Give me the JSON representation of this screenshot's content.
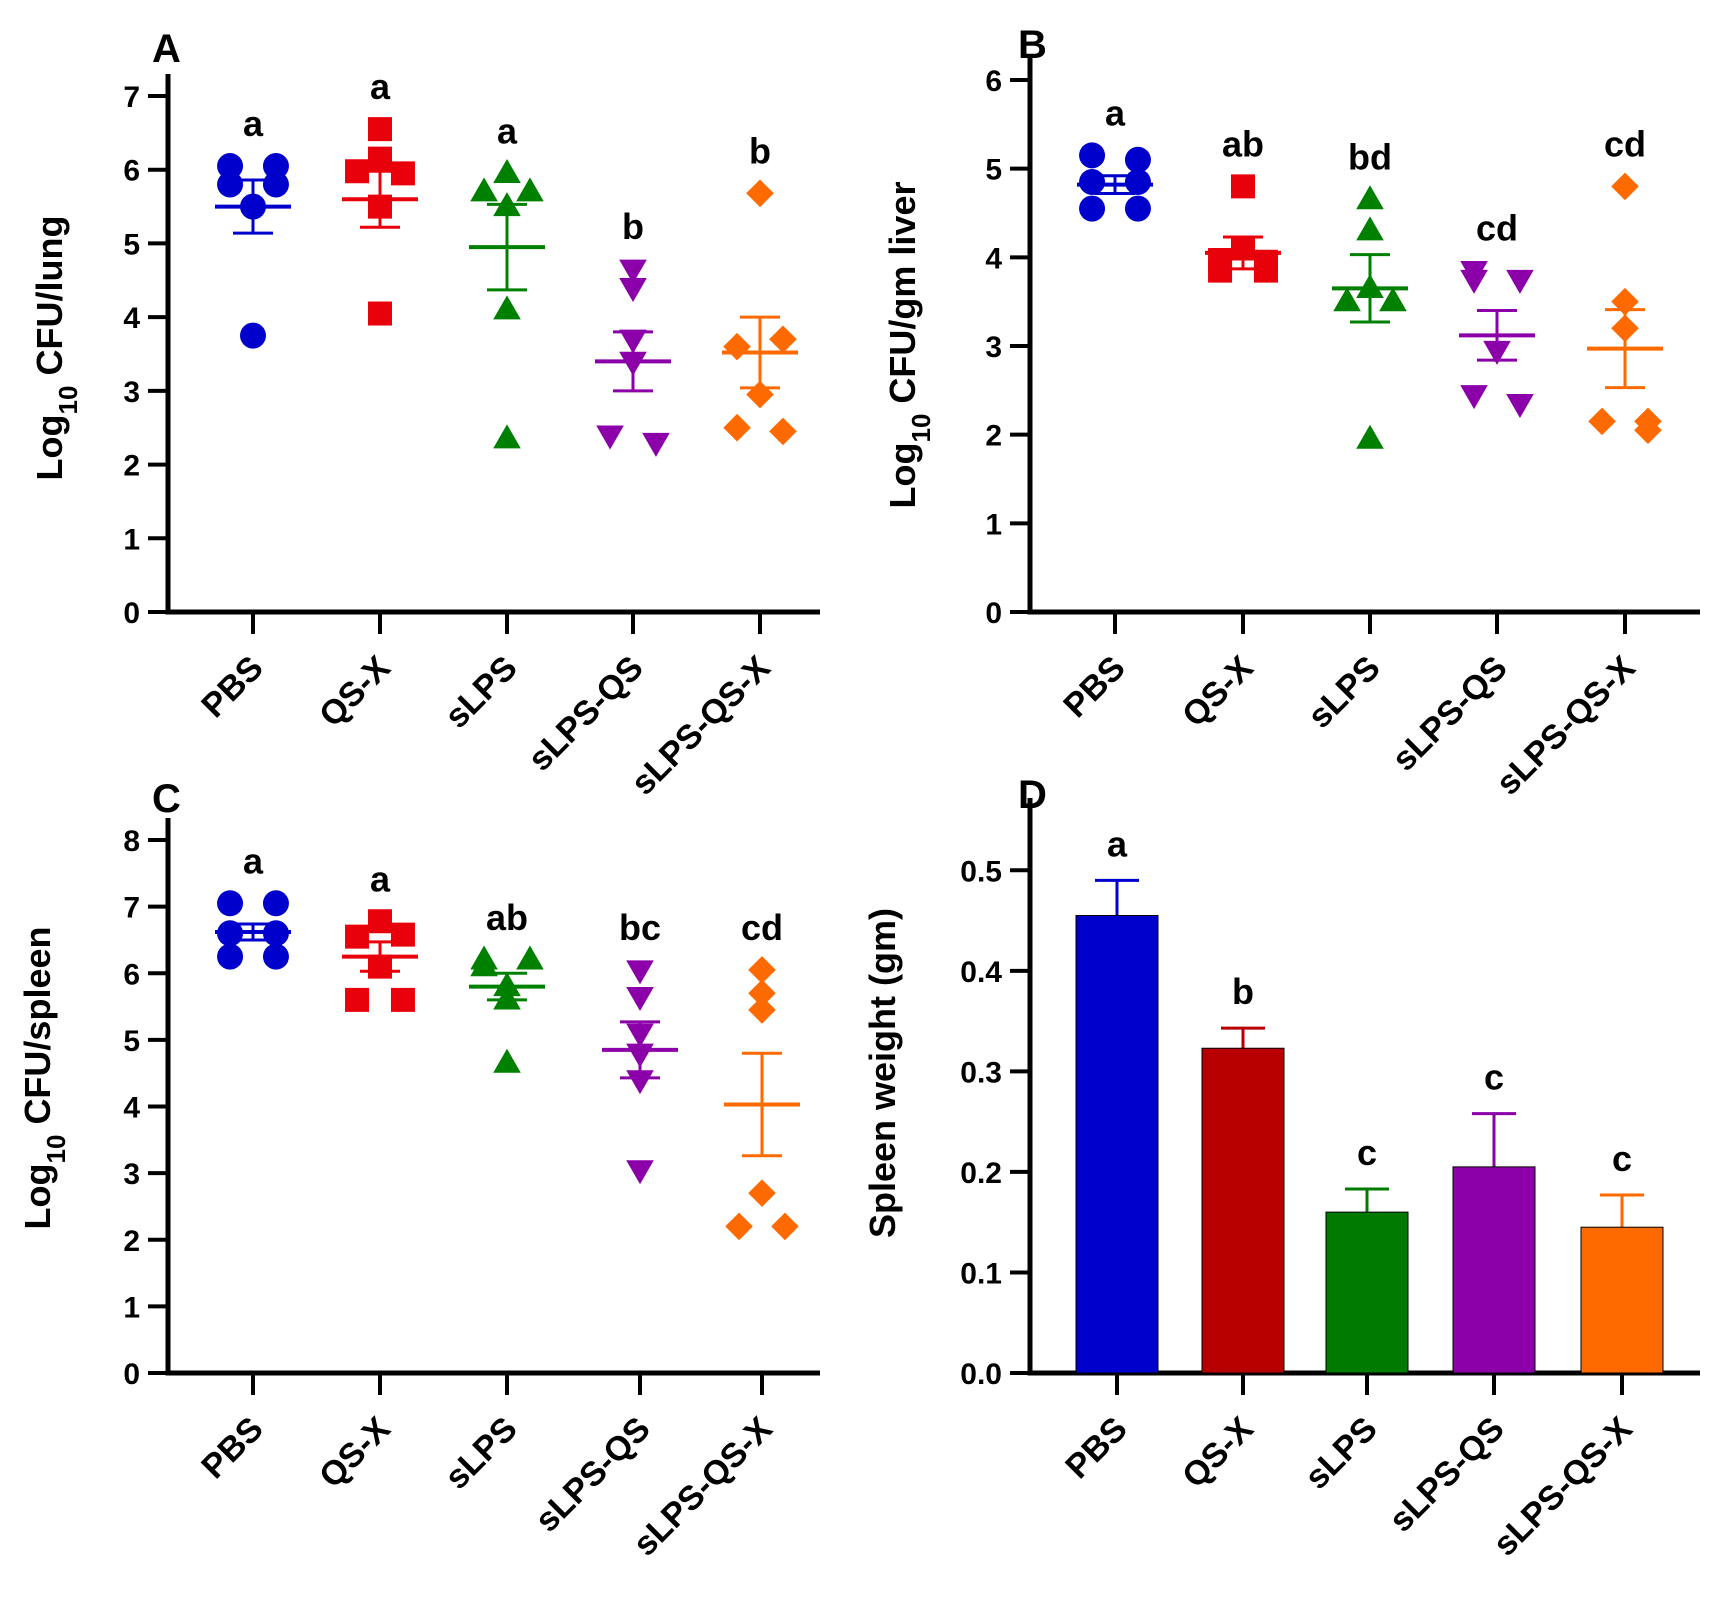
{
  "group_colors": {
    "PBS": "#0000cc",
    "QS-X": "#e8000b",
    "sLPS": "#008000",
    "sLPS-QS": "#8b00a8",
    "sLPS-QS-X": "#ff6a00"
  },
  "bar_colors": {
    "PBS": "#0000cc",
    "QS-X": "#b80000",
    "sLPS": "#007a00",
    "sLPS-QS": "#8b00a8",
    "sLPS-QS-X": "#ff6a00"
  },
  "chart_data": [
    {
      "id": "A",
      "panel_label": "A",
      "type": "scatter",
      "ylabel": {
        "prefix": "Log",
        "sub": "10",
        "suffix": " CFU/lung"
      },
      "ylim": [
        0,
        7
      ],
      "yticks": [
        "0",
        "1",
        "2",
        "3",
        "4",
        "5",
        "6",
        "7"
      ],
      "categories": [
        "PBS",
        "QS-X",
        "sLPS",
        "sLPS-QS",
        "sLPS-QS-X"
      ],
      "groups": [
        {
          "name": "PBS",
          "marker": "circle",
          "points": [
            6.05,
            6.05,
            5.8,
            5.8,
            5.5,
            3.75
          ],
          "mean": 5.5,
          "sem": 0.36,
          "sig": "a"
        },
        {
          "name": "QS-X",
          "marker": "square",
          "points": [
            6.55,
            6.15,
            5.98,
            5.95,
            5.5,
            4.05
          ],
          "mean": 5.6,
          "sem": 0.38,
          "sig": "a"
        },
        {
          "name": "sLPS",
          "marker": "triangle-up",
          "points": [
            5.95,
            5.7,
            5.7,
            5.5,
            4.1,
            2.35
          ],
          "mean": 4.95,
          "sem": 0.58,
          "sig": "a"
        },
        {
          "name": "sLPS-QS",
          "marker": "triangle-down",
          "points": [
            4.65,
            4.4,
            3.7,
            3.4,
            2.4,
            2.3
          ],
          "mean": 3.4,
          "sem": 0.4,
          "sig": "b"
        },
        {
          "name": "sLPS-QS-X",
          "marker": "diamond",
          "points": [
            5.68,
            3.7,
            3.6,
            2.95,
            2.5,
            2.45
          ],
          "mean": 3.52,
          "sem": 0.48,
          "sig": "b"
        }
      ]
    },
    {
      "id": "B",
      "panel_label": "B",
      "type": "scatter",
      "ylabel": {
        "prefix": "Log",
        "sub": "10",
        "suffix": " CFU/gm liver"
      },
      "ylim": [
        0,
        6
      ],
      "yticks": [
        "0",
        "1",
        "2",
        "3",
        "4",
        "5",
        "6"
      ],
      "categories": [
        "PBS",
        "QS-X",
        "sLPS",
        "sLPS-QS",
        "sLPS-QS-X"
      ],
      "groups": [
        {
          "name": "PBS",
          "marker": "circle",
          "points": [
            5.15,
            5.1,
            4.85,
            4.85,
            4.55,
            4.55
          ],
          "mean": 4.82,
          "sem": 0.1,
          "sig": "a"
        },
        {
          "name": "QS-X",
          "marker": "square",
          "points": [
            4.8,
            4.1,
            3.97,
            3.95,
            3.85,
            3.85
          ],
          "mean": 4.05,
          "sem": 0.18,
          "sig": "ab"
        },
        {
          "name": "sLPS",
          "marker": "triangle-up",
          "points": [
            4.65,
            4.3,
            3.65,
            3.5,
            3.5,
            1.95
          ],
          "mean": 3.65,
          "sem": 0.38,
          "sig": "bd"
        },
        {
          "name": "sLPS-QS",
          "marker": "triangle-down",
          "points": [
            3.85,
            3.75,
            3.75,
            2.95,
            2.45,
            2.35
          ],
          "mean": 3.12,
          "sem": 0.28,
          "sig": "cd"
        },
        {
          "name": "sLPS-QS-X",
          "marker": "diamond",
          "points": [
            4.8,
            3.5,
            3.2,
            2.15,
            2.15,
            2.05
          ],
          "mean": 2.97,
          "sem": 0.44,
          "sig": "cd"
        }
      ]
    },
    {
      "id": "C",
      "panel_label": "C",
      "type": "scatter",
      "ylabel": {
        "prefix": "Log",
        "sub": "10",
        "suffix": " CFU/spleen"
      },
      "ylim": [
        0,
        8
      ],
      "yticks": [
        "0",
        "1",
        "2",
        "3",
        "4",
        "5",
        "6",
        "7",
        "8"
      ],
      "categories": [
        "PBS",
        "QS-X",
        "sLPS",
        "sLPS-QS",
        "sLPS-QS-X"
      ],
      "groups": [
        {
          "name": "PBS",
          "marker": "circle",
          "points": [
            7.05,
            7.05,
            6.6,
            6.6,
            6.25,
            6.25
          ],
          "mean": 6.62,
          "sem": 0.12,
          "sig": "a"
        },
        {
          "name": "QS-X",
          "marker": "square",
          "points": [
            6.78,
            6.58,
            6.55,
            6.1,
            5.6,
            5.6
          ],
          "mean": 6.25,
          "sem": 0.22,
          "sig": "a"
        },
        {
          "name": "sLPS",
          "marker": "triangle-up",
          "points": [
            6.2,
            6.2,
            6.1,
            5.8,
            5.6,
            4.65
          ],
          "mean": 5.8,
          "sem": 0.2,
          "sig": "ab"
        },
        {
          "name": "sLPS-QS",
          "marker": "triangle-down",
          "points": [
            6.05,
            5.65,
            5.1,
            4.8,
            4.4,
            3.05
          ],
          "mean": 4.85,
          "sem": 0.42,
          "sig": "bc"
        },
        {
          "name": "sLPS-QS-X",
          "marker": "diamond",
          "points": [
            6.05,
            5.7,
            5.45,
            2.7,
            2.2,
            2.2
          ],
          "mean": 4.03,
          "sem": 0.77,
          "sig": "cd"
        }
      ]
    },
    {
      "id": "D",
      "panel_label": "D",
      "type": "bar",
      "ylabel": {
        "prefix": "",
        "sub": "",
        "suffix": "Spleen weight (gm)"
      },
      "ylim": [
        0,
        0.55
      ],
      "yticks": [
        "0.0",
        "0.1",
        "0.2",
        "0.3",
        "0.4",
        "0.5"
      ],
      "categories": [
        "PBS",
        "QS-X",
        "sLPS",
        "sLPS-QS",
        "sLPS-QS-X"
      ],
      "groups": [
        {
          "name": "PBS",
          "value": 0.455,
          "err": 0.035,
          "sig": "a"
        },
        {
          "name": "QS-X",
          "value": 0.323,
          "err": 0.02,
          "sig": "b"
        },
        {
          "name": "sLPS",
          "value": 0.16,
          "err": 0.023,
          "sig": "c"
        },
        {
          "name": "sLPS-QS",
          "value": 0.205,
          "err": 0.053,
          "sig": "c"
        },
        {
          "name": "sLPS-QS-X",
          "value": 0.145,
          "err": 0.032,
          "sig": "c"
        }
      ]
    }
  ]
}
